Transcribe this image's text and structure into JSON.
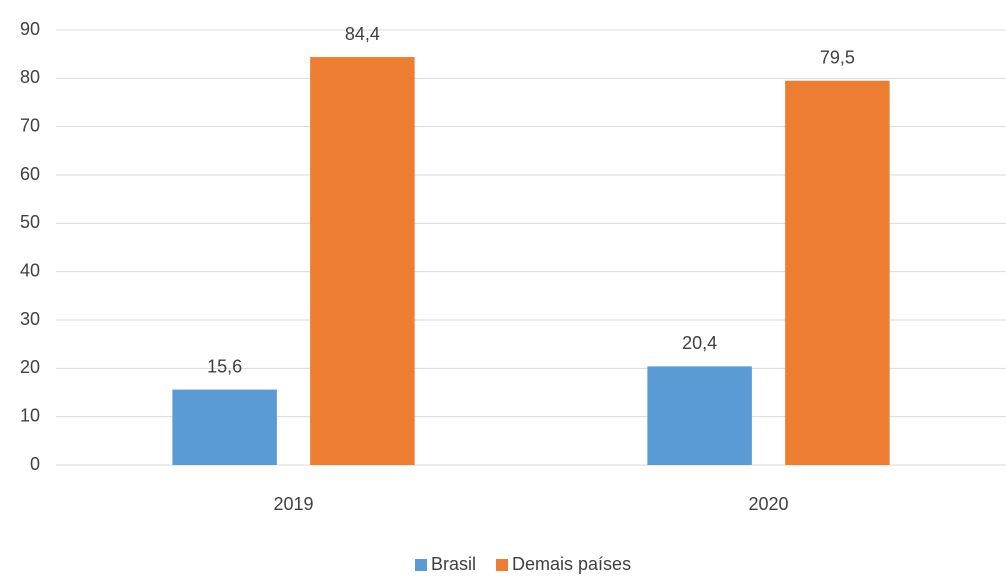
{
  "chart_data": {
    "type": "bar",
    "categories": [
      "2019",
      "2020"
    ],
    "series": [
      {
        "name": "Brasil",
        "color": "#5b9bd5",
        "values": [
          15.6,
          20.4
        ],
        "value_labels": [
          "15,6",
          "20,4"
        ]
      },
      {
        "name": "Demais países",
        "color": "#ed7d31",
        "values": [
          84.4,
          79.5
        ],
        "value_labels": [
          "84,4",
          "79,5"
        ]
      }
    ],
    "ylim": [
      0,
      90
    ],
    "yticks": [
      0,
      10,
      20,
      30,
      40,
      50,
      60,
      70,
      80,
      90
    ],
    "grid": true,
    "legend": "bottom"
  }
}
